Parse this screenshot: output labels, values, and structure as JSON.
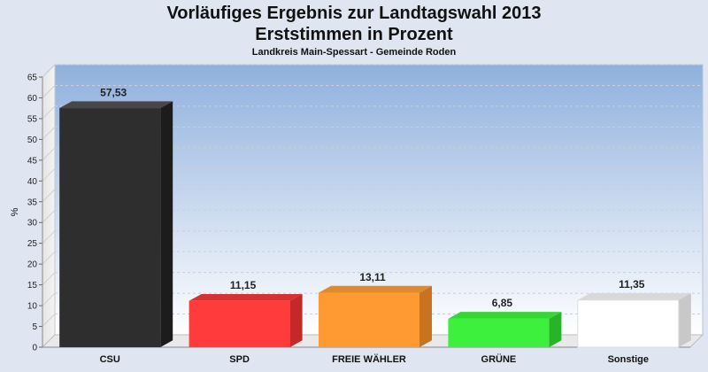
{
  "header": {
    "title_line1": "Vorläufiges Ergebnis zur Landtagswahl 2013",
    "title_line2": "Erststimmen in Prozent",
    "subtitle": "Landkreis Main-Spessart - Gemeinde Roden"
  },
  "chart_data": {
    "type": "bar",
    "title": "Vorläufiges Ergebnis zur Landtagswahl 2013 Erststimmen in Prozent",
    "subtitle": "Landkreis Main-Spessart - Gemeinde Roden",
    "xlabel": "",
    "ylabel": "%",
    "ylim": [
      0,
      65
    ],
    "yticks": [
      0,
      5,
      10,
      15,
      20,
      25,
      30,
      35,
      40,
      45,
      50,
      55,
      60,
      65
    ],
    "grid": true,
    "categories": [
      "CSU",
      "SPD",
      "FREIE WÄHLER",
      "GRÜNE",
      "Sonstige"
    ],
    "values": [
      57.53,
      11.15,
      13.11,
      6.85,
      11.35
    ],
    "value_labels": [
      "57,53",
      "11,15",
      "13,11",
      "6,85",
      "11,35"
    ],
    "colors": [
      "#2e2e2e",
      "#ff3b3b",
      "#ff9a33",
      "#3ef03e",
      "#ffffff"
    ],
    "side_colors": [
      "#1c1c1c",
      "#c42828",
      "#c8731f",
      "#27b527",
      "#c8c8c8"
    ],
    "top_colors": [
      "#474747",
      "#d63232",
      "#e08a2e",
      "#35d635",
      "#d8d8d8"
    ]
  }
}
